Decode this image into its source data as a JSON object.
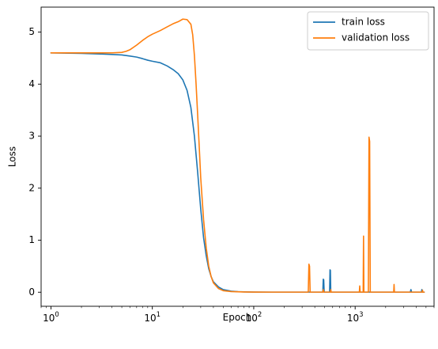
{
  "chart_data": {
    "type": "line",
    "title": "",
    "xlabel": "Epoch",
    "ylabel": "Loss",
    "xscale": "log",
    "xlim": [
      0.8,
      6000
    ],
    "ylim": [
      -0.27,
      5.48
    ],
    "x_ticks": [
      {
        "value": 1,
        "base": "10",
        "exp": "0"
      },
      {
        "value": 10,
        "base": "10",
        "exp": "1"
      },
      {
        "value": 100,
        "base": "10",
        "exp": "2"
      },
      {
        "value": 1000,
        "base": "10",
        "exp": "3"
      }
    ],
    "y_ticks": [
      {
        "value": 0,
        "label": "0"
      },
      {
        "value": 1,
        "label": "1"
      },
      {
        "value": 2,
        "label": "2"
      },
      {
        "value": 3,
        "label": "3"
      },
      {
        "value": 4,
        "label": "4"
      },
      {
        "value": 5,
        "label": "5"
      }
    ],
    "grid": false,
    "legend": {
      "position": "top-right"
    },
    "series": [
      {
        "name": "train loss",
        "color": "#1f77b4",
        "x": [
          1,
          2,
          3,
          4,
          5,
          6,
          7,
          8,
          9,
          10,
          12,
          14,
          16,
          18,
          20,
          22,
          24,
          26,
          28,
          30,
          32,
          34,
          36,
          38,
          40,
          45,
          50,
          60,
          70,
          80,
          100,
          150,
          200,
          300,
          480,
          485,
          490,
          495,
          520,
          560,
          565,
          570,
          575,
          600,
          800,
          1000,
          1500,
          2000,
          3000,
          3500,
          3550,
          3600,
          4000,
          4500,
          4550,
          4600,
          4800
        ],
        "y": [
          4.6,
          4.59,
          4.58,
          4.57,
          4.56,
          4.54,
          4.52,
          4.49,
          4.46,
          4.44,
          4.41,
          4.35,
          4.28,
          4.2,
          4.08,
          3.88,
          3.55,
          3.0,
          2.3,
          1.6,
          1.05,
          0.7,
          0.45,
          0.3,
          0.2,
          0.1,
          0.05,
          0.02,
          0.01,
          0.006,
          0.003,
          0.002,
          0.002,
          0.002,
          0.002,
          0.25,
          0.24,
          0.002,
          0.002,
          0.002,
          0.43,
          0.42,
          0.002,
          0.002,
          0.002,
          0.002,
          0.002,
          0.002,
          0.002,
          0.002,
          0.05,
          0.002,
          0.002,
          0.002,
          0.05,
          0.002,
          0.002
        ]
      },
      {
        "name": "validation loss",
        "color": "#ff7f0e",
        "x": [
          1,
          2,
          3,
          4,
          5,
          5.5,
          6,
          7,
          8,
          9,
          10,
          12,
          14,
          16,
          18,
          20,
          22,
          24,
          25,
          26,
          27,
          28,
          29,
          30,
          32,
          34,
          36,
          38,
          40,
          45,
          50,
          60,
          80,
          100,
          150,
          200,
          300,
          345,
          350,
          355,
          360,
          480,
          485,
          490,
          570,
          575,
          580,
          1100,
          1110,
          1120,
          1200,
          1210,
          1220,
          1350,
          1370,
          1390,
          1410,
          1500,
          2000,
          2400,
          2420,
          2440,
          3000,
          4000,
          4600,
          4620,
          4640,
          4800
        ],
        "y": [
          4.6,
          4.6,
          4.6,
          4.6,
          4.61,
          4.63,
          4.66,
          4.75,
          4.84,
          4.91,
          4.96,
          5.03,
          5.1,
          5.16,
          5.2,
          5.25,
          5.24,
          5.15,
          4.95,
          4.55,
          4.0,
          3.4,
          2.8,
          2.2,
          1.4,
          0.85,
          0.5,
          0.3,
          0.18,
          0.07,
          0.03,
          0.012,
          0.005,
          0.003,
          0.002,
          0.002,
          0.002,
          0.002,
          0.54,
          0.5,
          0.002,
          0.002,
          0.05,
          0.002,
          0.002,
          0.05,
          0.002,
          0.002,
          0.12,
          0.002,
          0.002,
          1.08,
          0.002,
          0.002,
          2.98,
          2.9,
          0.002,
          0.002,
          0.002,
          0.002,
          0.15,
          0.002,
          0.002,
          0.002,
          0.002,
          0.04,
          0.002,
          0.002
        ]
      }
    ]
  }
}
